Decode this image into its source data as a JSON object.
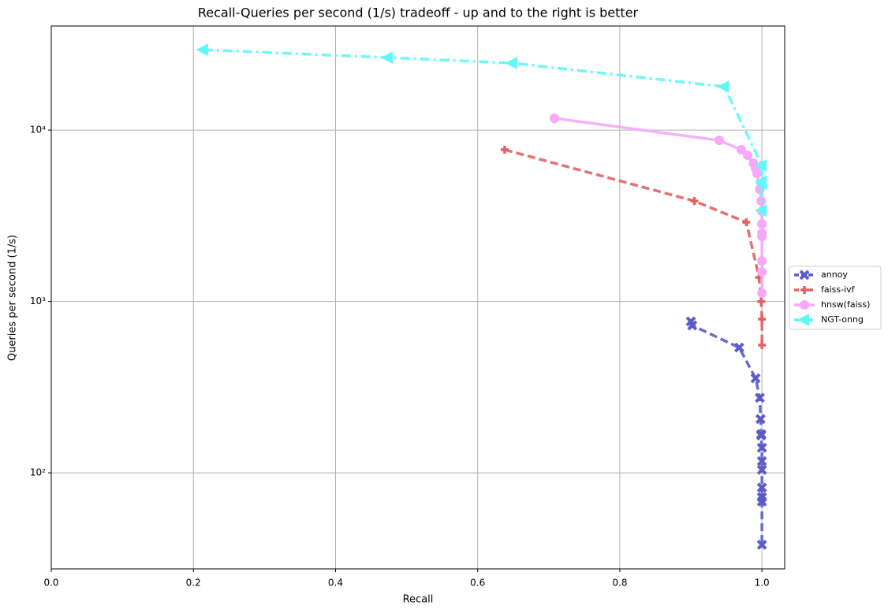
{
  "chart_data": {
    "type": "line",
    "title": "Recall-Queries per second (1/s) tradeoff - up and to the right is better",
    "x_label": "Recall",
    "y_label": "Queries per second (1/s)",
    "xlim": [
      0,
      1.032
    ],
    "ylim": [
      27.5,
      40500
    ],
    "y_scale": "log",
    "grid": true,
    "legend": "right-outside",
    "xticks": [
      {
        "value": 0,
        "label": "0.0"
      },
      0.2,
      0.4,
      0.6,
      0.8,
      {
        "value": 1,
        "label": "1.0"
      }
    ],
    "yticks": [
      {
        "value": 100,
        "label": "10²"
      },
      {
        "value": 1000,
        "label": "10³"
      },
      {
        "value": 10000,
        "label": "10⁴"
      }
    ],
    "series": [
      {
        "name": "annoy",
        "color": "#5b5bc8",
        "linestyle": "dashed",
        "marker": "x",
        "x": [
          0.9,
          0.902,
          0.968,
          0.991,
          0.997,
          0.998,
          0.999,
          0.999,
          1.0,
          1.0,
          1.0,
          1.0,
          1.0,
          1.0,
          1.0
        ],
        "values": [
          764,
          724,
          538,
          356,
          274,
          206,
          168,
          165,
          140,
          117,
          104,
          82,
          72,
          68,
          38
        ]
      },
      {
        "name": "faiss-ivf",
        "color": "#e06262",
        "linestyle": "dashed",
        "marker": "plus",
        "x": [
          0.638,
          0.905,
          0.978,
          0.996,
          0.999,
          1.0,
          1.0
        ],
        "values": [
          7680,
          3855,
          2898,
          1380,
          1000,
          789,
          556
        ]
      },
      {
        "name": "hnsw(faiss)",
        "color": "#f7a8f7",
        "linestyle": "solid",
        "marker": "circle",
        "x": [
          0.708,
          0.94,
          0.971,
          0.98,
          0.988,
          0.991,
          0.993,
          0.997,
          0.999,
          1.0,
          1.0,
          1.0,
          1.0,
          1.0,
          1.0,
          1.0
        ],
        "values": [
          11720,
          8710,
          7680,
          7120,
          6410,
          5950,
          5590,
          4520,
          3855,
          3360,
          2835,
          2500,
          2395,
          1725,
          1487,
          1117
        ]
      },
      {
        "name": "NGT-onng",
        "color": "#5ff7f7",
        "linestyle": "dashdot",
        "marker": "triangle-left",
        "x": [
          0.214,
          0.474,
          0.649,
          0.947,
          1.0,
          1.0,
          1.0,
          1.0
        ],
        "values": [
          29440,
          26490,
          24600,
          17920,
          6210,
          5020,
          4870,
          3400
        ]
      }
    ]
  }
}
